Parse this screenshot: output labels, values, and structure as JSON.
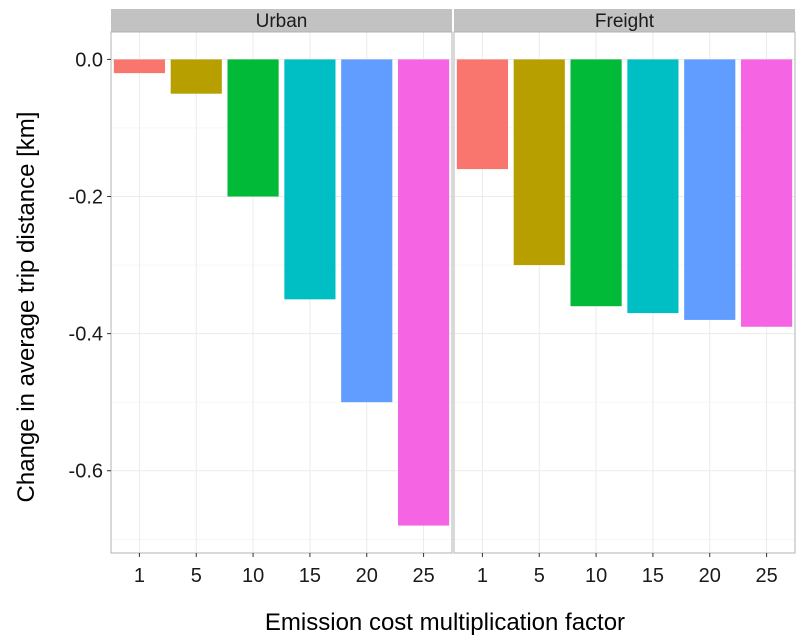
{
  "chart_data": {
    "type": "bar",
    "xlabel": "Emission cost multiplication factor",
    "ylabel": "Change in average trip distance [km]",
    "ylim": [
      -0.72,
      0.04
    ],
    "yticks": [
      "0.0",
      "-0.2",
      "-0.4",
      "-0.6"
    ],
    "ytick_values": [
      0.0,
      -0.2,
      -0.4,
      -0.6
    ],
    "categories": [
      "1",
      "5",
      "10",
      "15",
      "20",
      "25"
    ],
    "grid": true,
    "legend": "none",
    "colors": [
      "#F8766D",
      "#B79F00",
      "#00BA38",
      "#00BFC4",
      "#619CFF",
      "#F564E3"
    ],
    "panels": [
      {
        "name": "Urban",
        "values": [
          -0.02,
          -0.05,
          -0.2,
          -0.35,
          -0.5,
          -0.68
        ]
      },
      {
        "name": "Freight",
        "values": [
          -0.16,
          -0.3,
          -0.36,
          -0.37,
          -0.38,
          -0.39
        ]
      }
    ]
  }
}
